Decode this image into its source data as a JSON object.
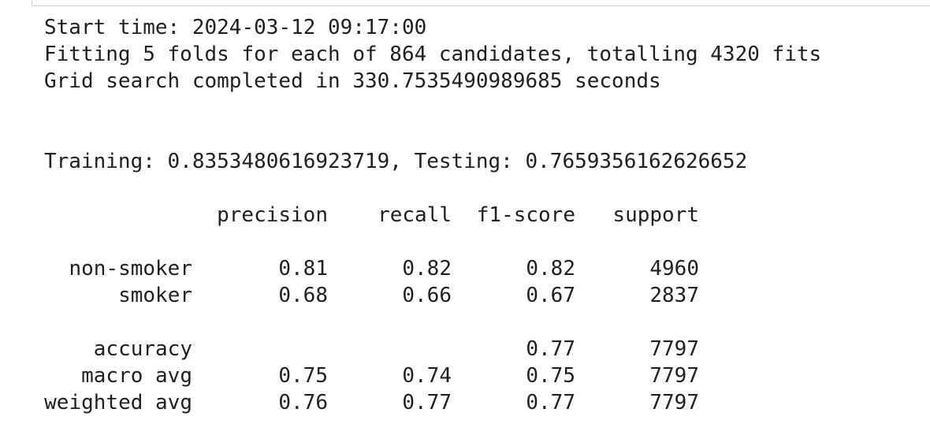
{
  "log": {
    "start_time": "Start time: 2024-03-12 09:17:00",
    "fitting": "Fitting 5 folds for each of 864 candidates, totalling 4320 fits",
    "grid_search": "Grid search completed in 330.7535490989685 seconds",
    "scores": "Training: 0.8353480616923719, Testing: 0.7659356162626652"
  },
  "report": {
    "headers": {
      "precision": "precision",
      "recall": "recall",
      "f1": "f1-score",
      "support": "support"
    },
    "classes": [
      {
        "label": "non-smoker",
        "precision": "0.81",
        "recall": "0.82",
        "f1": "0.82",
        "support": "4960"
      },
      {
        "label": "smoker",
        "precision": "0.68",
        "recall": "0.66",
        "f1": "0.67",
        "support": "2837"
      }
    ],
    "summary": [
      {
        "label": "accuracy",
        "precision": "",
        "recall": "",
        "f1": "0.77",
        "support": "7797"
      },
      {
        "label": "macro avg",
        "precision": "0.75",
        "recall": "0.74",
        "f1": "0.75",
        "support": "7797"
      },
      {
        "label": "weighted avg",
        "precision": "0.76",
        "recall": "0.77",
        "f1": "0.77",
        "support": "7797"
      }
    ]
  }
}
